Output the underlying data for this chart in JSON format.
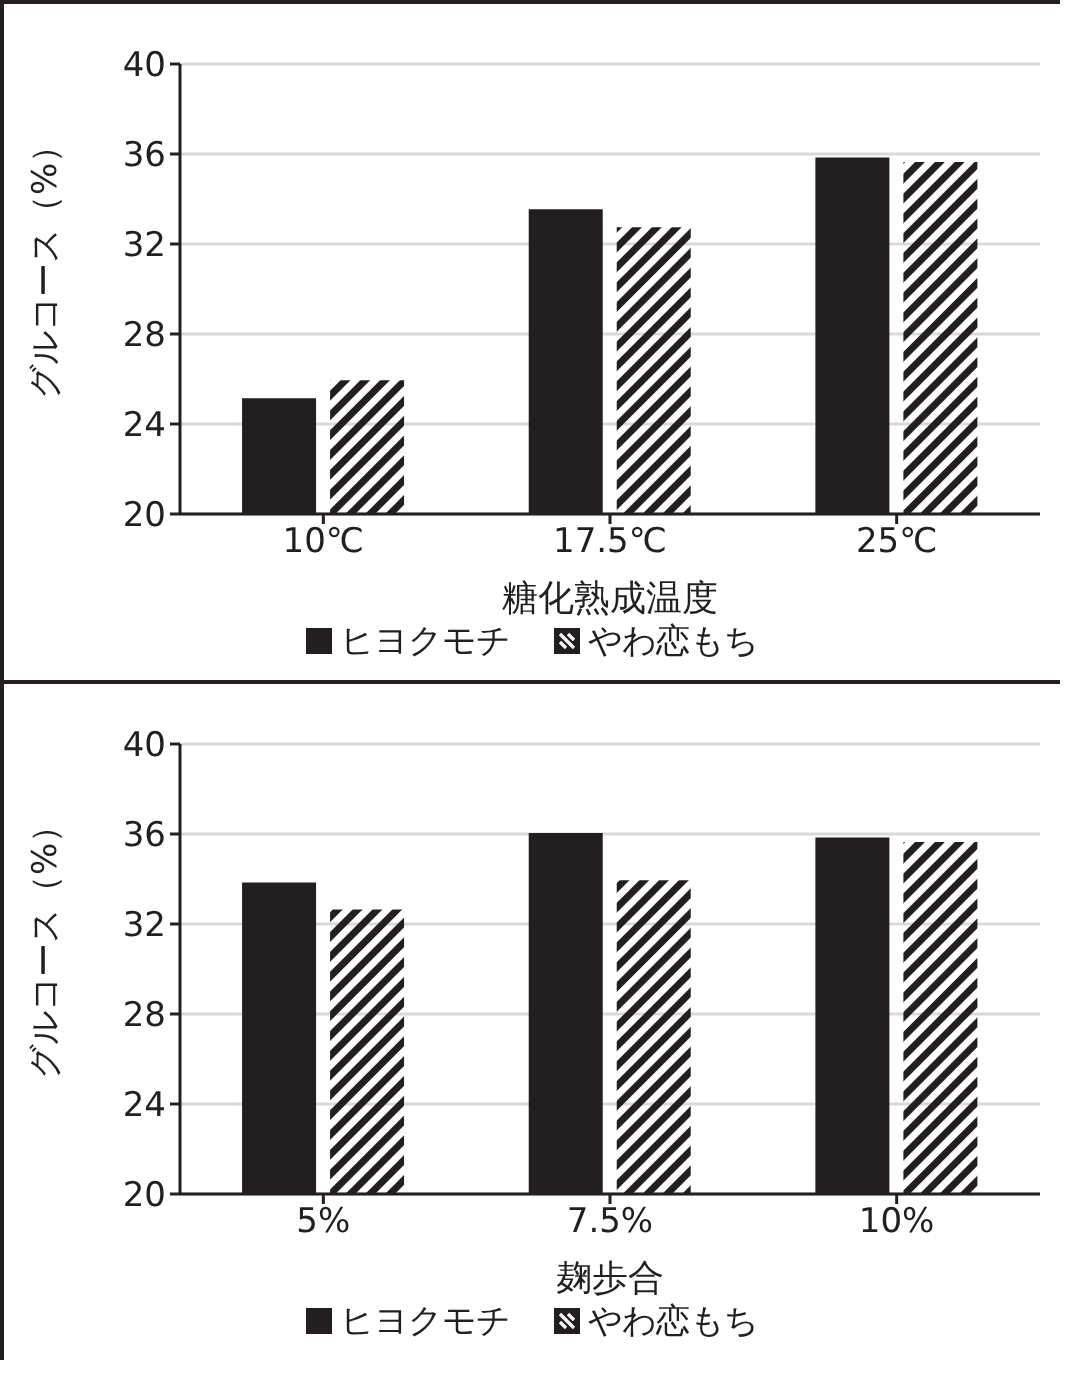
{
  "chart_data": [
    {
      "type": "bar",
      "xlabel": "糖化熟成温度",
      "ylabel": "グルコース（%）",
      "categories": [
        "10℃",
        "17.5℃",
        "25℃"
      ],
      "series": [
        {
          "name": "ヒヨクモチ",
          "color": "#231f20",
          "values": [
            25.1,
            33.5,
            35.8
          ]
        },
        {
          "name": "やわ恋もち",
          "color": "#231f20",
          "values": [
            25.9,
            32.7,
            35.6
          ]
        }
      ],
      "ylim": [
        20,
        40
      ],
      "yticks": [
        20,
        24,
        28,
        32,
        36,
        40
      ],
      "grid": "y",
      "legend": "bottom"
    },
    {
      "type": "bar",
      "xlabel": "麹歩合",
      "ylabel": "グルコース（%）",
      "categories": [
        "5%",
        "7.5%",
        "10%"
      ],
      "series": [
        {
          "name": "ヒヨクモチ",
          "color": "#231f20",
          "values": [
            33.8,
            36.0,
            35.8
          ]
        },
        {
          "name": "やわ恋もち",
          "color": "#231f20",
          "values": [
            32.6,
            33.9,
            35.6
          ]
        }
      ],
      "ylim": [
        20,
        40
      ],
      "yticks": [
        20,
        24,
        28,
        32,
        36,
        40
      ],
      "grid": "y",
      "legend": "bottom"
    }
  ]
}
